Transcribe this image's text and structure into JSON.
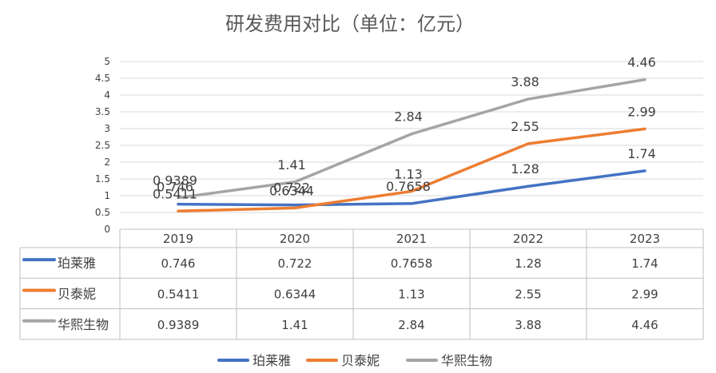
{
  "chart_data": {
    "type": "line",
    "title": "研发费用对比（单位：亿元）",
    "categories": [
      "2019",
      "2020",
      "2021",
      "2022",
      "2023"
    ],
    "ylim": [
      0,
      5
    ],
    "yticks": [
      "0",
      "0.5",
      "1",
      "1.5",
      "2",
      "2.5",
      "3",
      "3.5",
      "4",
      "4.5",
      "5"
    ],
    "grid": true,
    "legend_position": "bottom",
    "data_table": true,
    "series": [
      {
        "name": "珀莱雅",
        "color": "#4472C4",
        "values": [
          0.746,
          0.722,
          0.7658,
          1.28,
          1.74
        ],
        "labels": [
          "0.746",
          "0.722",
          "0.7658",
          "1.28",
          "1.74"
        ]
      },
      {
        "name": "贝泰妮",
        "color": "#ED7D31",
        "values": [
          0.5411,
          0.6344,
          1.13,
          2.55,
          2.99
        ],
        "labels": [
          "0.5411",
          "0.6344",
          "1.13",
          "2.55",
          "2.99"
        ]
      },
      {
        "name": "华熙生物",
        "color": "#A5A5A5",
        "values": [
          0.9389,
          1.41,
          2.84,
          3.88,
          4.46
        ],
        "labels": [
          "0.9389",
          "1.41",
          "2.84",
          "3.88",
          "4.46"
        ]
      }
    ]
  }
}
